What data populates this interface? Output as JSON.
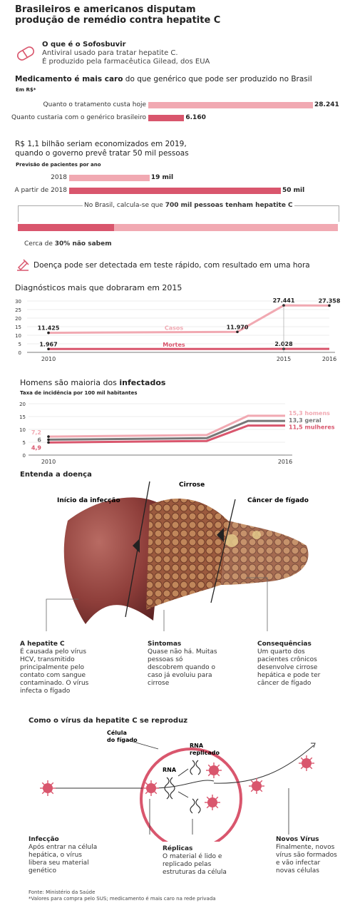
{
  "header": {
    "title_line1": "Brasileiros e americanos disputam",
    "title_line2": "produção de remédio contra hepatite C"
  },
  "sofo": {
    "heading": "O que é o Sofosbuvir",
    "line1": "Antiviral usado para tratar hepatite C.",
    "line2": "É produzido pela farmacêutica Gilead, dos EUA"
  },
  "cost": {
    "heading_bold": "Medicamento é mais caro",
    "heading_rest": " do que genérico que pode ser produzido no Brasil",
    "unit": "Em R$*"
  },
  "savings": {
    "line1": "R$ 1,1 bilhão seriam economizados em 2019,",
    "line2": "quando o governo prevê tratar 50 mil pessoas",
    "sub": "Previsão de pacientes por ano"
  },
  "prevalence": {
    "text_pre": "No Brasil, calcula-se que ",
    "text_bold": "700 mil pessoas tenham hepatite C",
    "unaware_pre": "Cerca de ",
    "unaware_bold": "30% não sabem",
    "unaware_fraction": 0.3
  },
  "test": {
    "text": "Doença pode ser detectada em teste rápido, com resultado em uma hora"
  },
  "diag": {
    "title": "Diagnósticos mais que dobraram em 2015"
  },
  "incid": {
    "title_pre": "Homens são maioria dos ",
    "title_bold": "infectados",
    "sub": "Taxa de incidência por 100 mil habitantes"
  },
  "liver": {
    "heading": "Entenda a doença",
    "stage1": "Início da infecção",
    "stage2": "Cirrose",
    "stage3": "Câncer de fígado",
    "a1_h": "A hepatite C",
    "a1_t": "É causada pelo vírus HCV, transmitido principalmente pelo contato com sangue contaminado. O vírus infecta o fígado",
    "a2_h": "Sintomas",
    "a2_t": "Quase não há. Muitas pessoas só descobrem quando o caso já evoluiu para cirrose",
    "a3_h": "Consequências",
    "a3_t": "Um quarto dos pacientes crônicos desenvolve cirrose hepática e pode ter câncer de fígado"
  },
  "virus": {
    "heading": "Como o vírus da hepatite C se reproduz",
    "cell": "Célula do fígado",
    "rna": "RNA",
    "rna_rep": "RNA replicado",
    "c1_h": "Infecção",
    "c1_t": "Após entrar na célula hepática, o vírus libera seu material genético",
    "c2_h": "Réplicas",
    "c2_t": "O material é lido e replicado pelas estruturas da célula",
    "c3_h": "Novos Vírus",
    "c3_t": "Finalmente, novos vírus são formados e vão infectar novas células"
  },
  "footer": {
    "source": "Fonte: Ministério da Saúde",
    "note": "*Valores para compra pelo SUS; medicamento é mais caro na rede privada"
  },
  "colors": {
    "light": "#f1a9b2",
    "dark": "#d9566d",
    "gray": "#777777"
  },
  "chart_data": [
    {
      "type": "bar",
      "orientation": "horizontal",
      "categories": [
        "Quanto o tratamento custa hoje",
        "Quanto custaria com o genérico brasileiro"
      ],
      "values": [
        28241,
        6160
      ],
      "value_labels": [
        "28.241",
        "6.160"
      ],
      "xlim": [
        0,
        28241
      ]
    },
    {
      "type": "bar",
      "orientation": "horizontal",
      "categories": [
        "2018",
        "A partir de 2018"
      ],
      "values": [
        19,
        50
      ],
      "value_labels": [
        "19 mil",
        "50 mil"
      ],
      "xlim": [
        0,
        50
      ]
    },
    {
      "type": "line",
      "x": [
        2010,
        2014,
        2015,
        2016
      ],
      "x_ticks": [
        "2010",
        "2015",
        "2016"
      ],
      "ylim": [
        0,
        30
      ],
      "y_ticks": [
        "0",
        "5",
        "10",
        "15",
        "20",
        "25",
        "30"
      ],
      "series": [
        {
          "name": "Casos",
          "values": [
            11.425,
            11.97,
            27.441,
            27.358
          ],
          "labels": [
            "11.425",
            "11.970",
            "27.441",
            "27.358"
          ]
        },
        {
          "name": "Mortes",
          "values": [
            1.967,
            2.0,
            2.028,
            2.028
          ],
          "labels": [
            "1.967",
            "",
            "2.028",
            ""
          ]
        }
      ]
    },
    {
      "type": "line",
      "x": [
        2010,
        2014,
        2015,
        2016
      ],
      "x_ticks": [
        "2010",
        "2016"
      ],
      "ylim": [
        0,
        20
      ],
      "y_ticks": [
        "0",
        "5",
        "10",
        "15",
        "20"
      ],
      "series": [
        {
          "name": "homens",
          "values": [
            7.2,
            7.8,
            15.3,
            15.3
          ],
          "start_label": "7,2",
          "end_label": "15,3 homens"
        },
        {
          "name": "geral",
          "values": [
            6,
            6.6,
            13.3,
            13.3
          ],
          "start_label": "6",
          "end_label": "13,3 geral"
        },
        {
          "name": "mulheres",
          "values": [
            4.9,
            5.5,
            11.5,
            11.5
          ],
          "start_label": "4,9",
          "end_label": "11,5 mulheres"
        }
      ]
    }
  ]
}
